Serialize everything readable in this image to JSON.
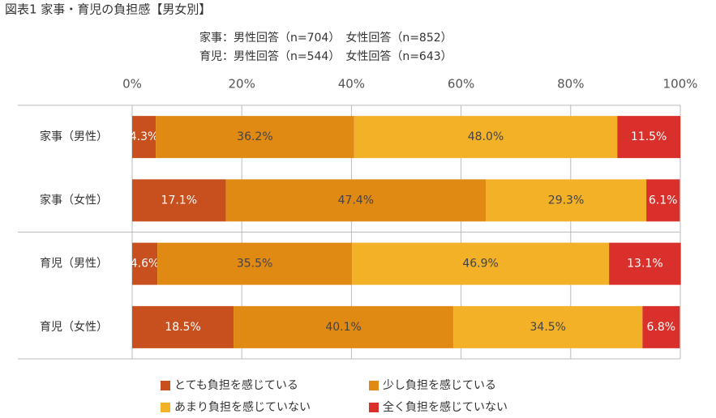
{
  "chart_data": {
    "type": "stacked-bar-horizontal",
    "title": "図表1 家事・育児の負担感【男女別】",
    "subtitle": [
      "家事：男性回答（n=704）　女性回答（n=852）",
      "育児：男性回答（n=544）　女性回答（n=643）"
    ],
    "categories": [
      "家事（男性）",
      "家事（女性）",
      "育児（男性）",
      "育児（女性）"
    ],
    "series": [
      {
        "name": "とても負担を感じている",
        "color": "#c8501e",
        "values": [
          4.3,
          17.1,
          4.6,
          18.5
        ],
        "value_labels": [
          "4.3%",
          "17.1%",
          "4.6%",
          "18.5%"
        ]
      },
      {
        "name": "少し負担を感じている",
        "color": "#e08a14",
        "values": [
          36.2,
          47.4,
          35.5,
          40.1
        ],
        "value_labels": [
          "36.2%",
          "47.4%",
          "35.5%",
          "40.1%"
        ]
      },
      {
        "name": "あまり負担を感じていない",
        "color": "#f2b127",
        "values": [
          48.0,
          29.3,
          46.9,
          34.5
        ],
        "value_labels": [
          "48.0%",
          "29.3%",
          "46.9%",
          "34.5%"
        ]
      },
      {
        "name": "全く負担を感じていない",
        "color": "#d9302b",
        "values": [
          11.5,
          6.1,
          13.1,
          6.8
        ],
        "value_labels": [
          "11.5%",
          "6.1%",
          "13.1%",
          "6.8%"
        ]
      }
    ],
    "xlim": [
      0,
      100
    ],
    "xticks": [
      {
        "value": 0,
        "label": "0%"
      },
      {
        "value": 20,
        "label": "20%"
      },
      {
        "value": 40,
        "label": "40%"
      },
      {
        "value": 60,
        "label": "60%"
      },
      {
        "value": 80,
        "label": "80%"
      },
      {
        "value": 100,
        "label": "100%"
      }
    ],
    "grid": true
  }
}
